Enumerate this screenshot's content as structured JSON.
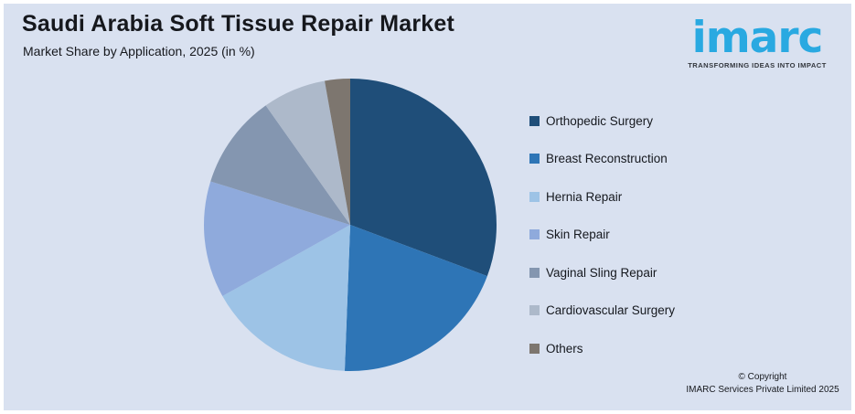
{
  "chart_data": {
    "type": "pie",
    "title": "Saudi Arabia Soft Tissue Repair Market",
    "subtitle": "Market Share by Application, 2025 (in %)",
    "unit": "%",
    "legend_position": "right",
    "data_labels_shown": false,
    "start_angle_deg": 0,
    "direction": "clockwise",
    "slices": [
      {
        "label": "Orthopedic Surgery",
        "value": 30.7,
        "color": "#1F4E79"
      },
      {
        "label": "Breast Reconstruction",
        "value": 19.9,
        "color": "#2E75B6"
      },
      {
        "label": "Hernia Repair",
        "value": 16.3,
        "color": "#9DC3E6"
      },
      {
        "label": "Skin Repair",
        "value": 12.9,
        "color": "#8FAADC"
      },
      {
        "label": "Vaginal Sling Repair",
        "value": 10.4,
        "color": "#8496B0"
      },
      {
        "label": "Cardiovascular Surgery",
        "value": 7.0,
        "color": "#ADB9CA"
      },
      {
        "label": "Others",
        "value": 2.8,
        "color": "#7D766F"
      }
    ]
  },
  "logo": {
    "wordmark": "imarc",
    "tagline": "TRANSFORMING IDEAS INTO IMPACT",
    "brand_color": "#29A9E1"
  },
  "footer": {
    "copyright_line1": "© Copyright",
    "copyright_line2": "IMARC Services Private Limited 2025"
  },
  "colors": {
    "page_background": "#FFFFFF",
    "panel_background": "#D9E1F0",
    "text_primary": "#16181D"
  }
}
